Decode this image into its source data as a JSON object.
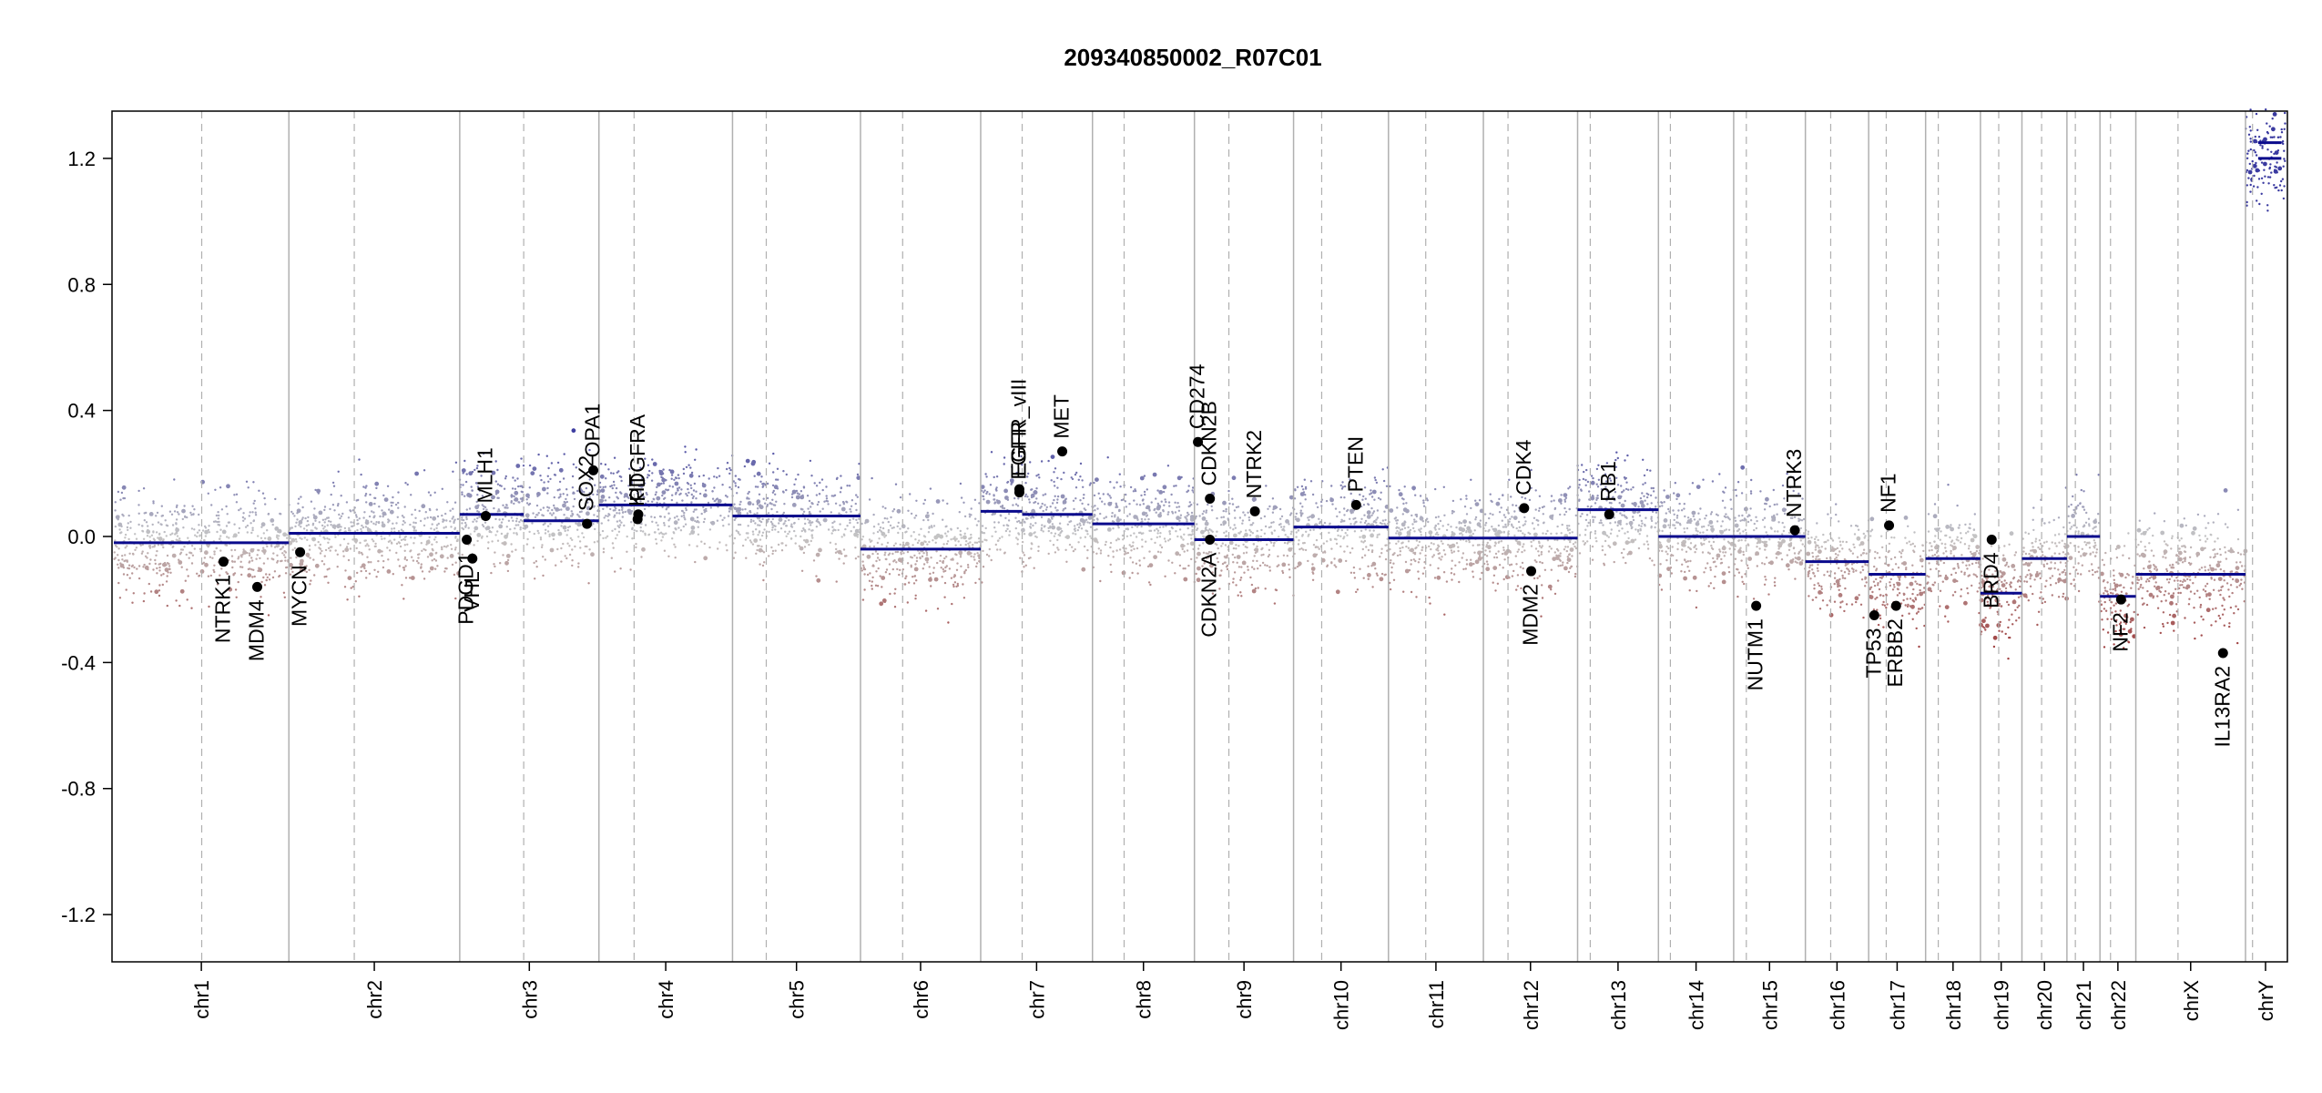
{
  "chart_data": {
    "type": "scatter",
    "title": "209340850002_R07C01",
    "xlabel": "",
    "ylabel": "",
    "ylim": [
      -1.35,
      1.35
    ],
    "y_ticks": [
      -1.2,
      -0.8,
      -0.4,
      0.0,
      0.4,
      0.8,
      1.2
    ],
    "y_tick_labels": [
      "-1.2",
      "-0.8",
      "-0.4",
      "0.0",
      "0.4",
      "0.8",
      "1.2"
    ],
    "grid": false,
    "colors": {
      "gain": "#3a3aa0",
      "loss": "#a04040",
      "neutral": "#c4c4c4",
      "segment": "#0a0a8c",
      "gene_point": "#000000",
      "chrom_border": "#b0b0b0"
    },
    "chromosomes": [
      {
        "name": "chr1",
        "start": 0,
        "end": 249,
        "centromere": 125,
        "seg_values": [
          -0.02
        ]
      },
      {
        "name": "chr2",
        "start": 249,
        "end": 492,
        "centromere": 342,
        "seg_values": [
          0.01
        ]
      },
      {
        "name": "chr3",
        "start": 492,
        "end": 690,
        "centromere": 583,
        "seg_values": [
          0.07,
          0.05
        ]
      },
      {
        "name": "chr4",
        "start": 690,
        "end": 880,
        "centromere": 740,
        "seg_values": [
          0.1
        ]
      },
      {
        "name": "chr5",
        "start": 880,
        "end": 1062,
        "centromere": 928,
        "seg_values": [
          0.065
        ]
      },
      {
        "name": "chr6",
        "start": 1062,
        "end": 1233,
        "centromere": 1122,
        "seg_values": [
          -0.04
        ]
      },
      {
        "name": "chr7",
        "start": 1233,
        "end": 1392,
        "centromere": 1292,
        "seg_values": [
          0.08,
          0.07
        ]
      },
      {
        "name": "chr8",
        "start": 1392,
        "end": 1537,
        "centromere": 1437,
        "seg_values": [
          0.04
        ]
      },
      {
        "name": "chr9",
        "start": 1537,
        "end": 1678,
        "centromere": 1586,
        "seg_values": [
          -0.01
        ]
      },
      {
        "name": "chr10",
        "start": 1678,
        "end": 1813,
        "centromere": 1718,
        "seg_values": [
          0.03
        ]
      },
      {
        "name": "chr11",
        "start": 1813,
        "end": 1948,
        "centromere": 1866,
        "seg_values": [
          -0.005
        ]
      },
      {
        "name": "chr12",
        "start": 1948,
        "end": 2082,
        "centromere": 1983,
        "seg_values": [
          -0.005
        ]
      },
      {
        "name": "chr13",
        "start": 2082,
        "end": 2197,
        "centromere": 2100,
        "seg_values": [
          0.085
        ]
      },
      {
        "name": "chr14",
        "start": 2197,
        "end": 2304,
        "centromere": 2214,
        "seg_values": [
          0.0
        ]
      },
      {
        "name": "chr15",
        "start": 2304,
        "end": 2406,
        "centromere": 2322,
        "seg_values": [
          0.0
        ]
      },
      {
        "name": "chr16",
        "start": 2406,
        "end": 2496,
        "centromere": 2442,
        "seg_values": [
          -0.08
        ]
      },
      {
        "name": "chr17",
        "start": 2496,
        "end": 2577,
        "centromere": 2521,
        "seg_values": [
          -0.12
        ]
      },
      {
        "name": "chr18",
        "start": 2577,
        "end": 2655,
        "centromere": 2595,
        "seg_values": [
          -0.07
        ]
      },
      {
        "name": "chr19",
        "start": 2655,
        "end": 2714,
        "centromere": 2681,
        "seg_values": [
          -0.18
        ]
      },
      {
        "name": "chr20",
        "start": 2714,
        "end": 2778,
        "centromere": 2742,
        "seg_values": [
          -0.07
        ]
      },
      {
        "name": "chr21",
        "start": 2778,
        "end": 2825,
        "centromere": 2790,
        "seg_values": [
          0.0
        ]
      },
      {
        "name": "chr22",
        "start": 2825,
        "end": 2876,
        "centromere": 2840,
        "seg_values": [
          -0.19
        ]
      },
      {
        "name": "chrX",
        "start": 2876,
        "end": 3032,
        "centromere": 2936,
        "seg_values": [
          -0.12
        ]
      },
      {
        "name": "chrY",
        "start": 3032,
        "end": 3089,
        "centromere": 3042,
        "seg_values": [
          1.2,
          1.25
        ]
      }
    ],
    "genes": [
      {
        "name": "NTRK1",
        "pos": 156,
        "value": -0.08
      },
      {
        "name": "MDM4",
        "pos": 204,
        "value": -0.16
      },
      {
        "name": "MYCN",
        "pos": 265,
        "value": -0.05
      },
      {
        "name": "PDGD1",
        "pos": 502,
        "value": -0.01
      },
      {
        "name": "VHL",
        "pos": 510,
        "value": -0.07
      },
      {
        "name": "MLH1",
        "pos": 529,
        "value": 0.065
      },
      {
        "name": "SOX2",
        "pos": 673,
        "value": 0.04
      },
      {
        "name": "OPA1",
        "pos": 682,
        "value": 0.21
      },
      {
        "name": "KIT",
        "pos": 745,
        "value": 0.055
      },
      {
        "name": "PDGFRA",
        "pos": 746,
        "value": 0.07
      },
      {
        "name": "EGFR_vIII",
        "pos": 1288,
        "value": 0.15
      },
      {
        "name": "EGFR",
        "pos": 1288,
        "value": 0.14
      },
      {
        "name": "MET",
        "pos": 1349,
        "value": 0.27
      },
      {
        "name": "CD274",
        "pos": 1542,
        "value": 0.3
      },
      {
        "name": "CDKN2B",
        "pos": 1559,
        "value": 0.12
      },
      {
        "name": "CDKN2A",
        "pos": 1559,
        "value": -0.01
      },
      {
        "name": "NTRK2",
        "pos": 1623,
        "value": 0.08
      },
      {
        "name": "PTEN",
        "pos": 1767,
        "value": 0.1
      },
      {
        "name": "CDK4",
        "pos": 2006,
        "value": 0.09
      },
      {
        "name": "MDM2",
        "pos": 2016,
        "value": -0.11
      },
      {
        "name": "RB1",
        "pos": 2127,
        "value": 0.07
      },
      {
        "name": "NUTM1",
        "pos": 2336,
        "value": -0.22
      },
      {
        "name": "NTRK3",
        "pos": 2391,
        "value": 0.02
      },
      {
        "name": "TP53",
        "pos": 2504,
        "value": -0.25
      },
      {
        "name": "NF1",
        "pos": 2525,
        "value": 0.035
      },
      {
        "name": "ERBB2",
        "pos": 2535,
        "value": -0.22
      },
      {
        "name": "BRD4",
        "pos": 2671,
        "value": -0.01
      },
      {
        "name": "NF2",
        "pos": 2855,
        "value": -0.2
      },
      {
        "name": "IL13RA2",
        "pos": 3000,
        "value": -0.37
      }
    ]
  }
}
